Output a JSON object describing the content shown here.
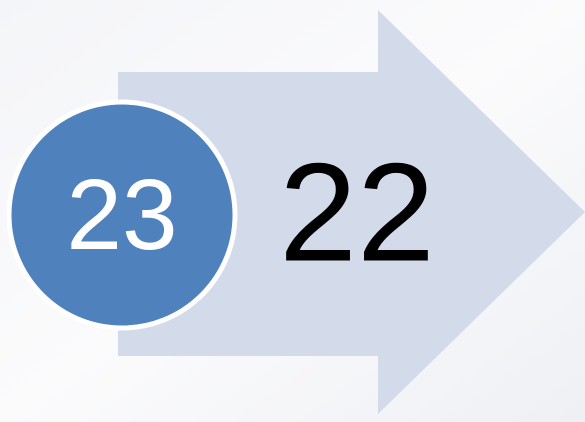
{
  "circle": {
    "label": "23"
  },
  "arrow": {
    "label": "22"
  }
}
